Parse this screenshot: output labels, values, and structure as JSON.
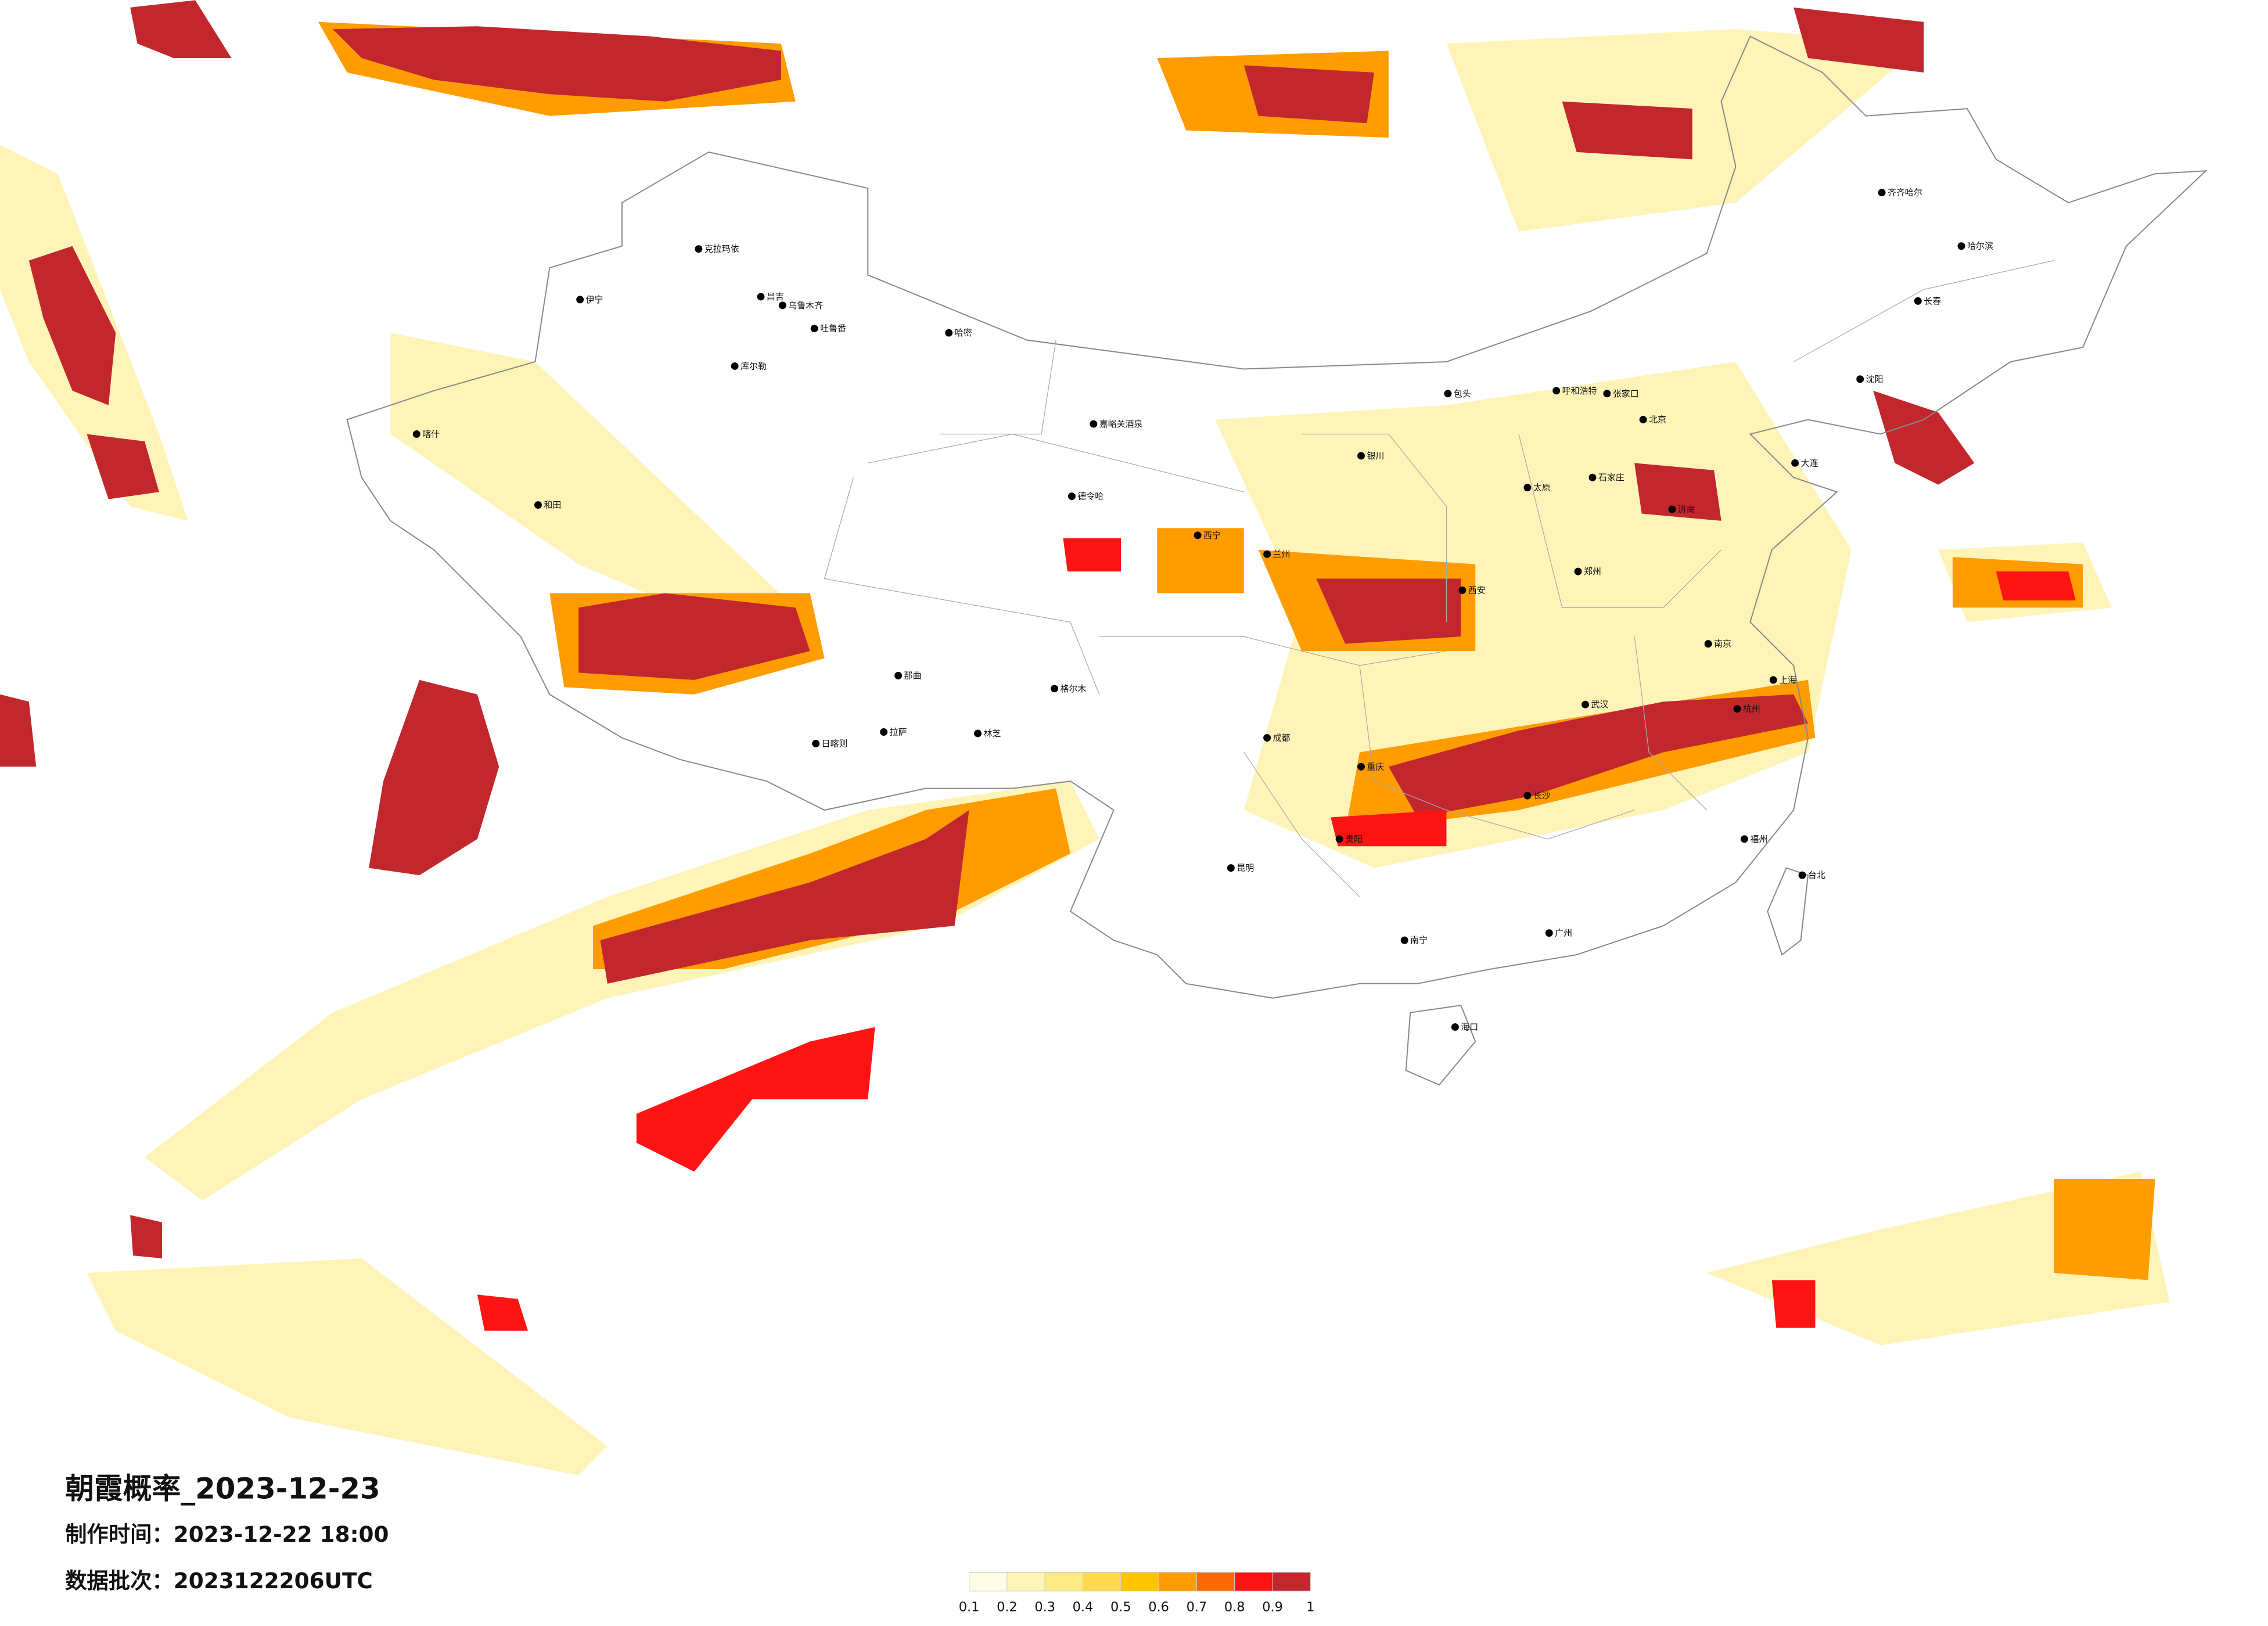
{
  "title": "朝霞概率_2023-12-23",
  "made_time": "制作时间：2023-12-22 18:00",
  "data_batch": "数据批次：2023122206UTC",
  "colorbar": {
    "colors": [
      "#fffce6",
      "#fff4b8",
      "#ffeb85",
      "#ffd94f",
      "#ffc300",
      "#ff9c00",
      "#ff6a00",
      "#ff1414",
      "#c1272d"
    ],
    "ticks": [
      0.1,
      0.2,
      0.3,
      0.4,
      0.5,
      0.6,
      0.7,
      0.8,
      0.9,
      1
    ]
  },
  "cities": [
    "克拉玛依",
    "昌吉",
    "乌鲁木齐",
    "吐鲁番",
    "哈密",
    "库尔勒",
    "伊宁",
    "喀什",
    "和田",
    "嘉峪关酒泉",
    "德令哈",
    "格尔木",
    "那曲",
    "日喀则",
    "拉萨",
    "林芝",
    "呼和浩特",
    "包头",
    "北京",
    "张家口",
    "石家庄",
    "太原",
    "济南",
    "郑州",
    "西安",
    "兰州",
    "西宁",
    "银川",
    "成都",
    "重庆",
    "贵阳",
    "昆明",
    "南宁",
    "广州",
    "长沙",
    "武汉",
    "南京",
    "上海",
    "杭州",
    "福州",
    "台北",
    "海口",
    "哈尔滨",
    "长春",
    "沈阳",
    "大连",
    "齐齐哈尔"
  ]
}
